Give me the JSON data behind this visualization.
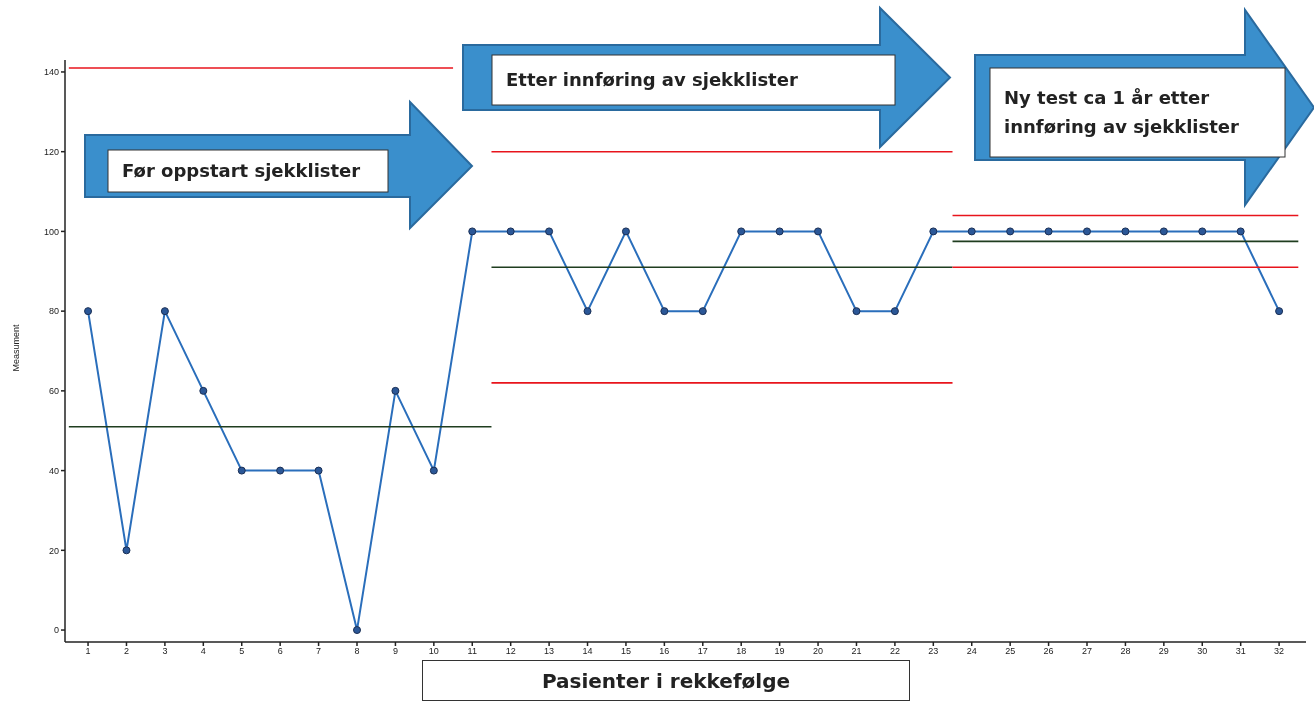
{
  "chart_data": {
    "type": "line",
    "ylabel": "Measument",
    "xlabel": "Pasienter i rekkefølge",
    "x": [
      1,
      2,
      3,
      4,
      5,
      6,
      7,
      8,
      9,
      10,
      11,
      12,
      13,
      14,
      15,
      16,
      17,
      18,
      19,
      20,
      21,
      22,
      23,
      24,
      25,
      26,
      27,
      28,
      29,
      30,
      31,
      32
    ],
    "series": [
      {
        "color": "#2a6ebb",
        "marker": "circle",
        "values": [
          80,
          20,
          80,
          60,
          40,
          40,
          40,
          0,
          60,
          40,
          100,
          100,
          100,
          80,
          100,
          80,
          80,
          100,
          100,
          100,
          80,
          80,
          100,
          100,
          100,
          100,
          100,
          100,
          100,
          100,
          100,
          80
        ]
      },
      {
        "color": "#e8141c",
        "marker": "none",
        "x": [
          0.5,
          10.5
        ],
        "values": [
          141,
          141
        ]
      },
      {
        "color": "#1f3d1f",
        "marker": "none",
        "x": [
          0.5,
          11.5
        ],
        "values": [
          51,
          51
        ]
      },
      {
        "color": "#e8141c",
        "marker": "none",
        "x": [
          11.5,
          23.5
        ],
        "values": [
          120,
          120
        ]
      },
      {
        "color": "#1f3d1f",
        "marker": "none",
        "x": [
          11.5,
          23.5
        ],
        "values": [
          91,
          91
        ]
      },
      {
        "color": "#e8141c",
        "marker": "none",
        "x": [
          11.5,
          23.5
        ],
        "values": [
          62,
          62
        ]
      },
      {
        "color": "#e8141c",
        "marker": "none",
        "x": [
          23.5,
          32.5
        ],
        "values": [
          104,
          104
        ]
      },
      {
        "color": "#1f3d1f",
        "marker": "none",
        "x": [
          23.5,
          32.5
        ],
        "values": [
          97.5,
          97.5
        ]
      },
      {
        "color": "#e8141c",
        "marker": "none",
        "x": [
          23.5,
          32.5
        ],
        "values": [
          91,
          91
        ]
      }
    ],
    "xlim": [
      0.4,
      32.7
    ],
    "xticks": [
      1,
      2,
      3,
      4,
      5,
      6,
      7,
      8,
      9,
      10,
      11,
      12,
      13,
      14,
      15,
      16,
      17,
      18,
      19,
      20,
      21,
      22,
      23,
      24,
      25,
      26,
      27,
      28,
      29,
      30,
      31,
      32
    ],
    "ylim": [
      -3,
      143
    ],
    "yticks": [
      0,
      20,
      40,
      60,
      80,
      100,
      120,
      140
    ],
    "annotations": [
      "Før oppstart sjekklister",
      "Etter innføring av sjekklister",
      "Ny test ca 1 år etter innføring av sjekklister"
    ]
  }
}
